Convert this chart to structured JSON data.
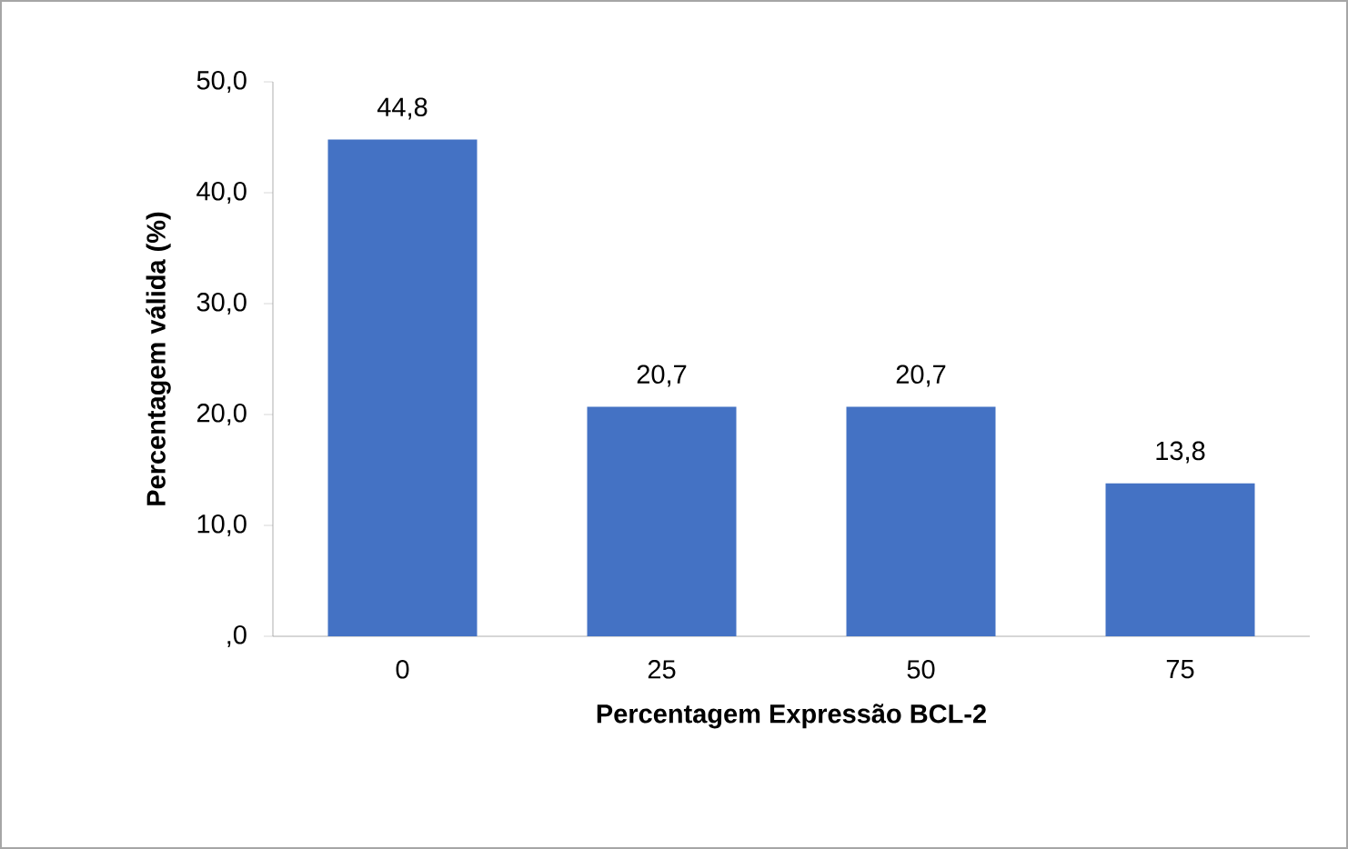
{
  "chart_data": {
    "type": "bar",
    "categories": [
      "0",
      "25",
      "50",
      "75"
    ],
    "values": [
      44.8,
      20.7,
      20.7,
      13.8
    ],
    "value_labels": [
      "44,8",
      "20,7",
      "20,7",
      "13,8"
    ],
    "color": "#4472c4",
    "xlabel": "Percentagem Expressão BCL-2",
    "ylabel": "Percentagem válida (%)",
    "ylim": [
      0,
      50
    ],
    "yticks": [
      {
        "value": 0,
        "label": ",0"
      },
      {
        "value": 10,
        "label": "10,0"
      },
      {
        "value": 20,
        "label": "20,0"
      },
      {
        "value": 30,
        "label": "30,0"
      },
      {
        "value": 40,
        "label": "40,0"
      },
      {
        "value": 50,
        "label": "50,0"
      }
    ],
    "grid": false
  }
}
